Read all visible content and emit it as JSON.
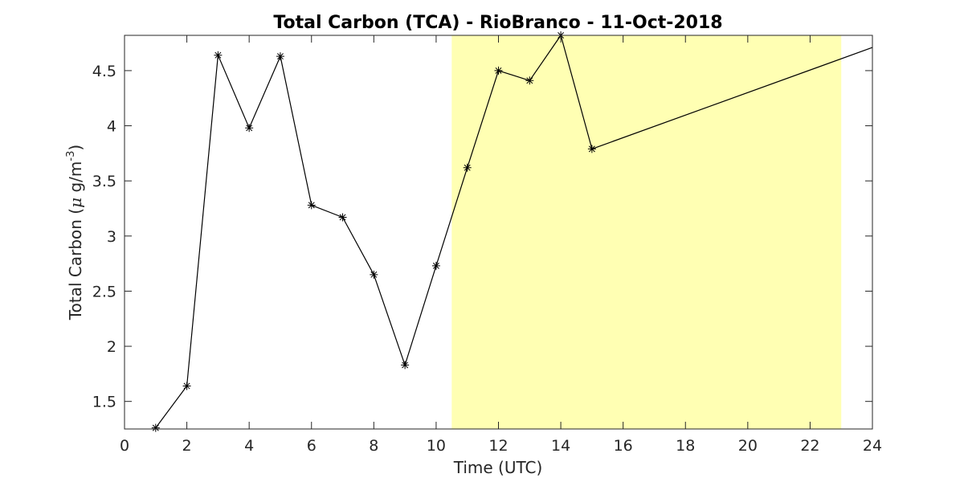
{
  "chart_data": {
    "type": "line",
    "title": "Total Carbon (TCA) - RioBranco - 11-Oct-2018",
    "xlabel": "Time (UTC)",
    "ylabel_main": "Total Carbon (",
    "ylabel_mu": "μ",
    "ylabel_unit": " g/m",
    "ylabel_exp": "-3",
    "ylabel_close": ")",
    "xlim": [
      0,
      24
    ],
    "ylim": [
      1.25,
      4.82
    ],
    "xticks": [
      0,
      2,
      4,
      6,
      8,
      10,
      12,
      14,
      16,
      18,
      20,
      22,
      24
    ],
    "yticks": [
      1.5,
      2,
      2.5,
      3,
      3.5,
      4,
      4.5
    ],
    "xtick_labels": [
      "0",
      "2",
      "4",
      "6",
      "8",
      "10",
      "12",
      "14",
      "16",
      "18",
      "20",
      "22",
      "24"
    ],
    "ytick_labels": [
      "1.5",
      "2",
      "2.5",
      "3",
      "3.5",
      "4",
      "4.5"
    ],
    "grid": false,
    "marker": "asterisk",
    "series": [
      {
        "x": [
          1,
          2,
          3,
          4,
          5,
          6,
          7,
          8,
          9,
          10,
          11,
          12,
          13,
          14,
          15,
          24
        ],
        "y": [
          1.26,
          1.64,
          4.64,
          3.98,
          4.63,
          3.28,
          3.17,
          2.65,
          1.83,
          2.73,
          3.62,
          4.5,
          4.41,
          4.82,
          3.79,
          4.71
        ],
        "markers": [
          true,
          true,
          true,
          true,
          true,
          true,
          true,
          true,
          true,
          true,
          true,
          true,
          true,
          true,
          true,
          false
        ],
        "color": "#000000"
      }
    ],
    "highlight_band": {
      "x_start": 10.5,
      "x_end": 23,
      "color": "#ffffb3"
    }
  }
}
